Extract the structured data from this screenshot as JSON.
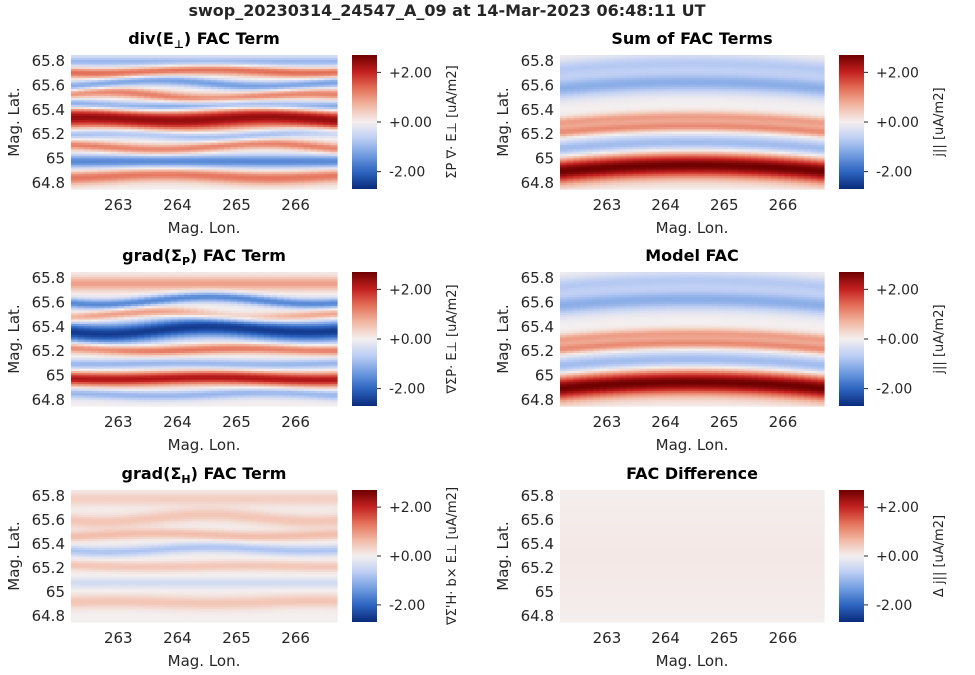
{
  "figure": {
    "title": "swop_20230314_24547_A_09 at 14-Mar-2023 06:48:11 UT"
  },
  "colors": {
    "colormap": [
      "#0a2a7a",
      "#2c63bf",
      "#6f9be0",
      "#bccdf4",
      "#f4efef",
      "#f2b7a2",
      "#e46f58",
      "#c21f1f",
      "#6e0000"
    ],
    "text": "#262626"
  },
  "chart_data": [
    {
      "type": "heatmap",
      "id": "div_e",
      "title": "div(E⊥) FAC Term",
      "title_main": "div(E",
      "title_sub": "⊥",
      "title_tail": ") FAC Term",
      "xlabel": "Mag. Lon.",
      "ylabel": "Mag. Lat.",
      "xlim": [
        262.2,
        266.7
      ],
      "ylim": [
        64.75,
        65.85
      ],
      "xticks": [
        263,
        264,
        265,
        266
      ],
      "yticks": [
        64.8,
        65,
        65.2,
        65.4,
        65.6,
        65.8
      ],
      "yticklabels": [
        "64.8",
        "65",
        "65.2",
        "65.4",
        "65.6",
        "65.8"
      ],
      "clim": [
        -2.7,
        2.7
      ],
      "cbticks": [
        "+2.00",
        "+0.00",
        "-2.00"
      ],
      "cbtick_values": [
        2,
        0,
        -2
      ],
      "cblabel": "ΣP ∇· E⊥ [uA/m2]",
      "features": [
        {
          "lat": 65.8,
          "amp": -1.0,
          "width": 0.03,
          "tilt": 0.0
        },
        {
          "lat": 65.72,
          "amp": 1.4,
          "width": 0.03,
          "tilt": 0.01
        },
        {
          "lat": 65.62,
          "amp": -1.3,
          "width": 0.03,
          "tilt": 0.02
        },
        {
          "lat": 65.52,
          "amp": 1.2,
          "width": 0.03,
          "tilt": 0.03
        },
        {
          "lat": 65.44,
          "amp": -1.5,
          "width": 0.03,
          "tilt": 0.02
        },
        {
          "lat": 65.33,
          "amp": 2.4,
          "width": 0.06,
          "tilt": -0.03
        },
        {
          "lat": 65.2,
          "amp": -1.0,
          "width": 0.03,
          "tilt": 0.02
        },
        {
          "lat": 65.1,
          "amp": 1.2,
          "width": 0.03,
          "tilt": 0.02
        },
        {
          "lat": 64.98,
          "amp": -1.6,
          "width": 0.04,
          "tilt": 0.0
        },
        {
          "lat": 64.86,
          "amp": 1.3,
          "width": 0.04,
          "tilt": 0.01
        }
      ]
    },
    {
      "type": "heatmap",
      "id": "sum_fac",
      "title": "Sum of FAC Terms",
      "title_main": "Sum of FAC Terms",
      "title_sub": "",
      "title_tail": "",
      "xlabel": "Mag. Lon.",
      "ylabel": "Mag. Lat.",
      "xlim": [
        262.2,
        266.7
      ],
      "ylim": [
        64.75,
        65.85
      ],
      "xticks": [
        263,
        264,
        265,
        266
      ],
      "yticks": [
        64.8,
        65,
        65.2,
        65.4,
        65.6,
        65.8
      ],
      "yticklabels": [
        "64.8",
        "65",
        "65.2",
        "65.4",
        "65.6",
        "65.8"
      ],
      "clim": [
        -2.7,
        2.7
      ],
      "cbticks": [
        "+2.00",
        "+0.00",
        "-2.00"
      ],
      "cbtick_values": [
        2,
        0,
        -2
      ],
      "cblabel": "j|| [uA/m2]",
      "features": [
        {
          "lat": 65.74,
          "amp": -0.7,
          "width": 0.05,
          "arc": 0.05
        },
        {
          "lat": 65.58,
          "amp": -1.1,
          "width": 0.06,
          "arc": 0.05
        },
        {
          "lat": 65.3,
          "amp": 0.9,
          "width": 0.03,
          "arc": 0.05
        },
        {
          "lat": 65.22,
          "amp": 1.1,
          "width": 0.03,
          "arc": 0.05
        },
        {
          "lat": 65.08,
          "amp": -1.0,
          "width": 0.05,
          "arc": 0.05
        },
        {
          "lat": 64.9,
          "amp": 2.7,
          "width": 0.07,
          "arc": 0.05
        }
      ]
    },
    {
      "type": "heatmap",
      "id": "grad_sp",
      "title": "grad(ΣP) FAC Term",
      "title_main": "grad(Σ",
      "title_sub": "P",
      "title_tail": ") FAC Term",
      "xlabel": "Mag. Lon.",
      "ylabel": "Mag. Lat.",
      "xlim": [
        262.2,
        266.7
      ],
      "ylim": [
        64.75,
        65.85
      ],
      "xticks": [
        263,
        264,
        265,
        266
      ],
      "yticks": [
        64.8,
        65,
        65.2,
        65.4,
        65.6,
        65.8
      ],
      "yticklabels": [
        "64.8",
        "65",
        "65.2",
        "65.4",
        "65.6",
        "65.8"
      ],
      "clim": [
        -2.7,
        2.7
      ],
      "cbticks": [
        "+2.00",
        "+0.00",
        "-2.00"
      ],
      "cbtick_values": [
        2,
        0,
        -2
      ],
      "cblabel": "∇ΣP· E⊥ [uA/m2]",
      "features": [
        {
          "lat": 65.76,
          "amp": 0.9,
          "width": 0.04,
          "tilt": 0.0
        },
        {
          "lat": 65.62,
          "amp": -1.6,
          "width": 0.03,
          "tilt": 0.02
        },
        {
          "lat": 65.5,
          "amp": 1.0,
          "width": 0.03,
          "tilt": 0.02
        },
        {
          "lat": 65.38,
          "amp": -2.5,
          "width": 0.06,
          "tilt": -0.03
        },
        {
          "lat": 65.22,
          "amp": 1.3,
          "width": 0.03,
          "tilt": 0.02
        },
        {
          "lat": 65.1,
          "amp": -1.0,
          "width": 0.03,
          "tilt": 0.01
        },
        {
          "lat": 64.98,
          "amp": 2.2,
          "width": 0.04,
          "tilt": -0.01
        },
        {
          "lat": 64.85,
          "amp": -1.0,
          "width": 0.03,
          "tilt": 0.01
        }
      ]
    },
    {
      "type": "heatmap",
      "id": "model_fac",
      "title": "Model FAC",
      "title_main": "Model FAC",
      "title_sub": "",
      "title_tail": "",
      "xlabel": "Mag. Lon.",
      "ylabel": "Mag. Lat.",
      "xlim": [
        262.2,
        266.7
      ],
      "ylim": [
        64.75,
        65.85
      ],
      "xticks": [
        263,
        264,
        265,
        266
      ],
      "yticks": [
        64.8,
        65,
        65.2,
        65.4,
        65.6,
        65.8
      ],
      "yticklabels": [
        "64.8",
        "65",
        "65.2",
        "65.4",
        "65.6",
        "65.8"
      ],
      "clim": [
        -2.7,
        2.7
      ],
      "cbticks": [
        "+2.00",
        "+0.00",
        "-2.00"
      ],
      "cbtick_values": [
        2,
        0,
        -2
      ],
      "cblabel": "j|| [uA/m2]",
      "features": [
        {
          "lat": 65.74,
          "amp": -0.7,
          "width": 0.05,
          "arc": 0.05
        },
        {
          "lat": 65.58,
          "amp": -1.1,
          "width": 0.06,
          "arc": 0.05
        },
        {
          "lat": 65.3,
          "amp": 0.9,
          "width": 0.03,
          "arc": 0.05
        },
        {
          "lat": 65.22,
          "amp": 1.1,
          "width": 0.03,
          "arc": 0.05
        },
        {
          "lat": 65.08,
          "amp": -1.0,
          "width": 0.05,
          "arc": 0.05
        },
        {
          "lat": 64.9,
          "amp": 2.7,
          "width": 0.07,
          "arc": 0.05
        }
      ]
    },
    {
      "type": "heatmap",
      "id": "grad_sh",
      "title": "grad(ΣH) FAC Term",
      "title_main": "grad(Σ",
      "title_sub": "H",
      "title_tail": ") FAC Term",
      "xlabel": "Mag. Lon.",
      "ylabel": "Mag. Lat.",
      "xlim": [
        262.2,
        266.7
      ],
      "ylim": [
        64.75,
        65.85
      ],
      "xticks": [
        263,
        264,
        265,
        266
      ],
      "yticks": [
        64.8,
        65,
        65.2,
        65.4,
        65.6,
        65.8
      ],
      "yticklabels": [
        "64.8",
        "65",
        "65.2",
        "65.4",
        "65.6",
        "65.8"
      ],
      "clim": [
        -2.7,
        2.7
      ],
      "cbticks": [
        "+2.00",
        "+0.00",
        "-2.00"
      ],
      "cbtick_values": [
        2,
        0,
        -2
      ],
      "cblabel": "∇Σ'H· b× E⊥ [uA/m2]",
      "features": [
        {
          "lat": 65.78,
          "amp": 0.4,
          "width": 0.04,
          "tilt": 0.0
        },
        {
          "lat": 65.62,
          "amp": 0.5,
          "width": 0.04,
          "tilt": 0.02
        },
        {
          "lat": 65.48,
          "amp": 0.6,
          "width": 0.03,
          "tilt": 0.01
        },
        {
          "lat": 65.36,
          "amp": -0.8,
          "width": 0.03,
          "tilt": -0.02
        },
        {
          "lat": 65.22,
          "amp": 0.5,
          "width": 0.03,
          "tilt": 0.01
        },
        {
          "lat": 65.08,
          "amp": -0.4,
          "width": 0.03,
          "tilt": 0.0
        },
        {
          "lat": 64.92,
          "amp": 0.5,
          "width": 0.04,
          "tilt": 0.01
        }
      ]
    },
    {
      "type": "heatmap",
      "id": "fac_diff",
      "title": "FAC Difference",
      "title_main": "FAC Difference",
      "title_sub": "",
      "title_tail": "",
      "xlabel": "Mag. Lon.",
      "ylabel": "Mag. Lat.",
      "xlim": [
        262.2,
        266.7
      ],
      "ylim": [
        64.75,
        65.85
      ],
      "xticks": [
        263,
        264,
        265,
        266
      ],
      "yticks": [
        64.8,
        65,
        65.2,
        65.4,
        65.6,
        65.8
      ],
      "yticklabels": [
        "64.8",
        "65",
        "65.2",
        "65.4",
        "65.6",
        "65.8"
      ],
      "clim": [
        -2.7,
        2.7
      ],
      "cbticks": [
        "+2.00",
        "+0.00",
        "-2.00"
      ],
      "cbtick_values": [
        2,
        0,
        -2
      ],
      "cblabel": "Δ j|| [uA/m2]",
      "features": [
        {
          "lat": 65.3,
          "amp": 0.08,
          "width": 0.3,
          "tilt": 0.0
        }
      ]
    }
  ]
}
